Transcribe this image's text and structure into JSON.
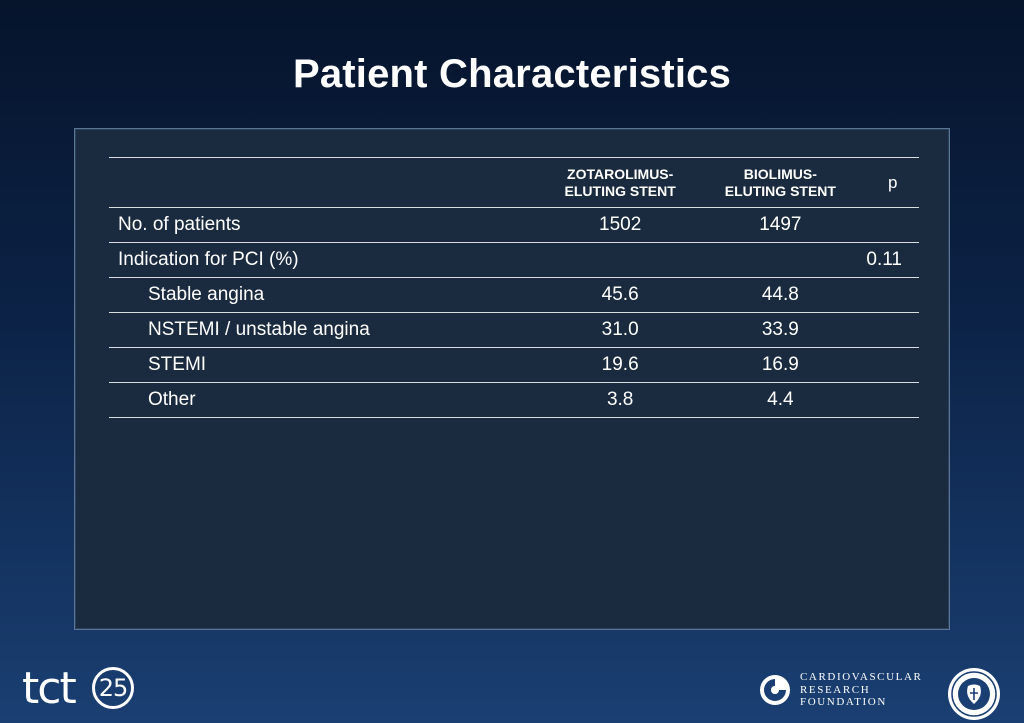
{
  "slide": {
    "title": "Patient Characteristics"
  },
  "table": {
    "headers": {
      "label": "",
      "col1_line1": "ZOTAROLIMUS-",
      "col1_line2": "ELUTING STENT",
      "col2_line1": "BIOLIMUS-",
      "col2_line2": "ELUTING STENT",
      "p": "p"
    },
    "rows": [
      {
        "label": "No. of patients",
        "zotarolimus": "1502",
        "biolimus": "1497",
        "p": "",
        "indent": false
      },
      {
        "label": "Indication for PCI (%)",
        "zotarolimus": "",
        "biolimus": "",
        "p": "0.11",
        "indent": false
      },
      {
        "label": "Stable angina",
        "zotarolimus": "45.6",
        "biolimus": "44.8",
        "p": "",
        "indent": true
      },
      {
        "label": "NSTEMI / unstable angina",
        "zotarolimus": "31.0",
        "biolimus": "33.9",
        "p": "",
        "indent": true
      },
      {
        "label": "STEMI",
        "zotarolimus": "19.6",
        "biolimus": "16.9",
        "p": "",
        "indent": true
      },
      {
        "label": "Other",
        "zotarolimus": "3.8",
        "biolimus": "4.4",
        "p": "",
        "indent": true
      }
    ]
  },
  "footer": {
    "tct_logo": {
      "text": "tct",
      "number": "25"
    },
    "crf_logo": {
      "line1": "CARDIOVASCULAR",
      "line2": "RESEARCH",
      "line3": "FOUNDATION",
      "mark_icon": "crf-swirl-icon"
    },
    "seal_icon": "college-seal-icon"
  },
  "colors": {
    "background_top": "#06142c",
    "background_bottom": "#1a3f72",
    "panel": "#1b2b3f",
    "text": "#ffffff"
  }
}
